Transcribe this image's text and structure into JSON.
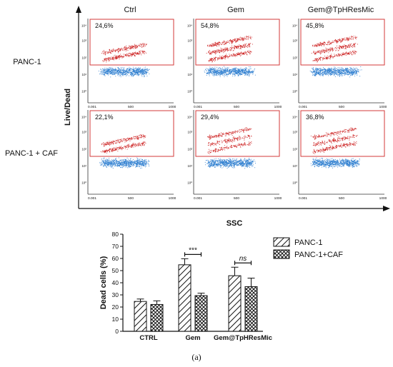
{
  "figure": {
    "panel_label": "(a)"
  },
  "flow": {
    "columns": [
      "Ctrl",
      "Gem",
      "Gem@TpHResMic"
    ],
    "rows": [
      "PANC-1",
      "PANC-1 + CAF"
    ],
    "y_axis_label": "Live/Dead",
    "x_axis_label": "SSC",
    "x_ticks": [
      "0.001",
      "500",
      "1000"
    ],
    "y_ticks": [
      "10⁴",
      "10³",
      "10²",
      "10¹",
      "10⁰"
    ],
    "percentages": [
      [
        "24,6%",
        "54,8%",
        "45,8%"
      ],
      [
        "22,1%",
        "29,4%",
        "36,8%"
      ]
    ],
    "colors": {
      "dead": "#cc1f1f",
      "live": "#2f7fd0",
      "gate": "#d33a3a"
    }
  },
  "chart_data": {
    "type": "bar",
    "categories": [
      "CTRL",
      "Gem",
      "Gem@TpHResMic"
    ],
    "ylabel": "Dead cells (%)",
    "ylim": [
      0,
      80
    ],
    "yticks": [
      0,
      10,
      20,
      30,
      40,
      50,
      60,
      70,
      80
    ],
    "series": [
      {
        "name": "PANC-1",
        "values": [
          24.6,
          54.8,
          45.8
        ],
        "errors": [
          2,
          5,
          7
        ],
        "pattern": "diagonal"
      },
      {
        "name": "PANC-1+CAF",
        "values": [
          22.1,
          29.4,
          36.8
        ],
        "errors": [
          3,
          2,
          7
        ],
        "pattern": "crosshatch"
      }
    ],
    "annotations": [
      {
        "category": "Gem",
        "text": "***",
        "style": "normal"
      },
      {
        "category": "Gem@TpHResMic",
        "text": "ns",
        "style": "italic"
      }
    ],
    "legend_position": "top-right"
  }
}
